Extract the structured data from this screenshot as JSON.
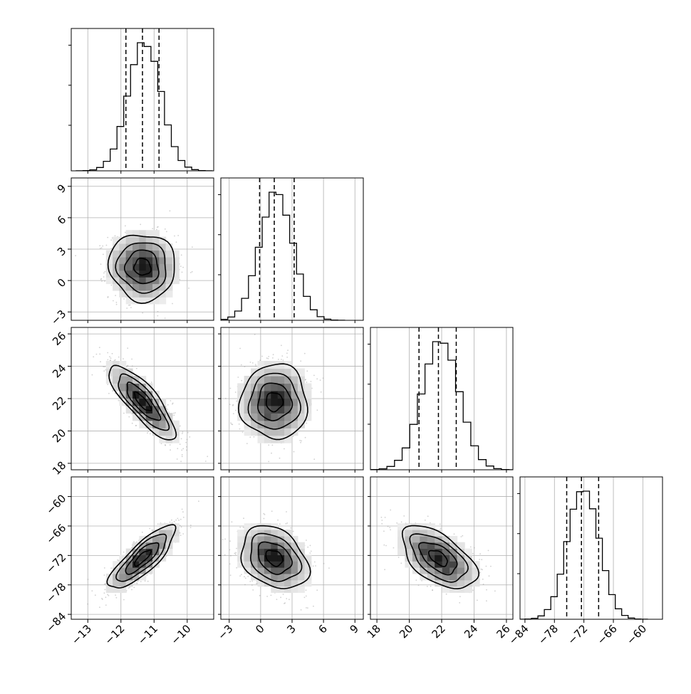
{
  "chart_data": {
    "type": "corner",
    "title": "",
    "grid": true,
    "parameters": [
      {
        "label": "",
        "range": [
          -13.5,
          -9.2
        ],
        "ticks": [
          -13,
          -12,
          -11,
          -10
        ],
        "tick_labels": [
          "−13",
          "−12",
          "−11",
          "−10"
        ],
        "quantiles": [
          -11.85,
          -11.35,
          -10.85
        ],
        "median": -11.35,
        "sigma": 0.5
      },
      {
        "label": "",
        "range": [
          -3.8,
          9.8
        ],
        "ticks": [
          -3,
          0,
          3,
          6,
          9
        ],
        "tick_labels": [
          "−3",
          "0",
          "3",
          "6",
          "9"
        ],
        "quantiles": [
          -0.1,
          1.3,
          3.2
        ],
        "median": 1.3,
        "sigma": 1.6
      },
      {
        "label": "",
        "range": [
          17.6,
          26.4
        ],
        "ticks": [
          18,
          20,
          22,
          24,
          26
        ],
        "tick_labels": [
          "18",
          "20",
          "22",
          "24",
          "26"
        ],
        "quantiles": [
          20.6,
          21.8,
          22.9
        ],
        "median": 21.8,
        "sigma": 1.15
      },
      {
        "label": "",
        "range": [
          -85,
          -56
        ],
        "ticks": [
          -84,
          -78,
          -72,
          -66,
          -60
        ],
        "tick_labels": [
          "−84",
          "−78",
          "−72",
          "−66",
          "−60"
        ],
        "quantiles": [
          -75.5,
          -72.5,
          -69.0
        ],
        "median": -72.5,
        "sigma": 3.2
      }
    ],
    "correlations": [
      {
        "pair": [
          1,
          0
        ],
        "rho": -0.05
      },
      {
        "pair": [
          2,
          0
        ],
        "rho": -0.82
      },
      {
        "pair": [
          2,
          1
        ],
        "rho": 0.0
      },
      {
        "pair": [
          3,
          0
        ],
        "rho": 0.82
      },
      {
        "pair": [
          3,
          1
        ],
        "rho": -0.3
      },
      {
        "pair": [
          3,
          2
        ],
        "rho": -0.55
      }
    ],
    "histogram_bins": 20,
    "contour_levels": [
      "0.5 sigma",
      "1 sigma",
      "1.5 sigma",
      "2 sigma"
    ],
    "colors": {
      "line": "#000000",
      "grid": "#b0b0b0",
      "points": "#9a9a9a",
      "frame": "#000000"
    }
  }
}
